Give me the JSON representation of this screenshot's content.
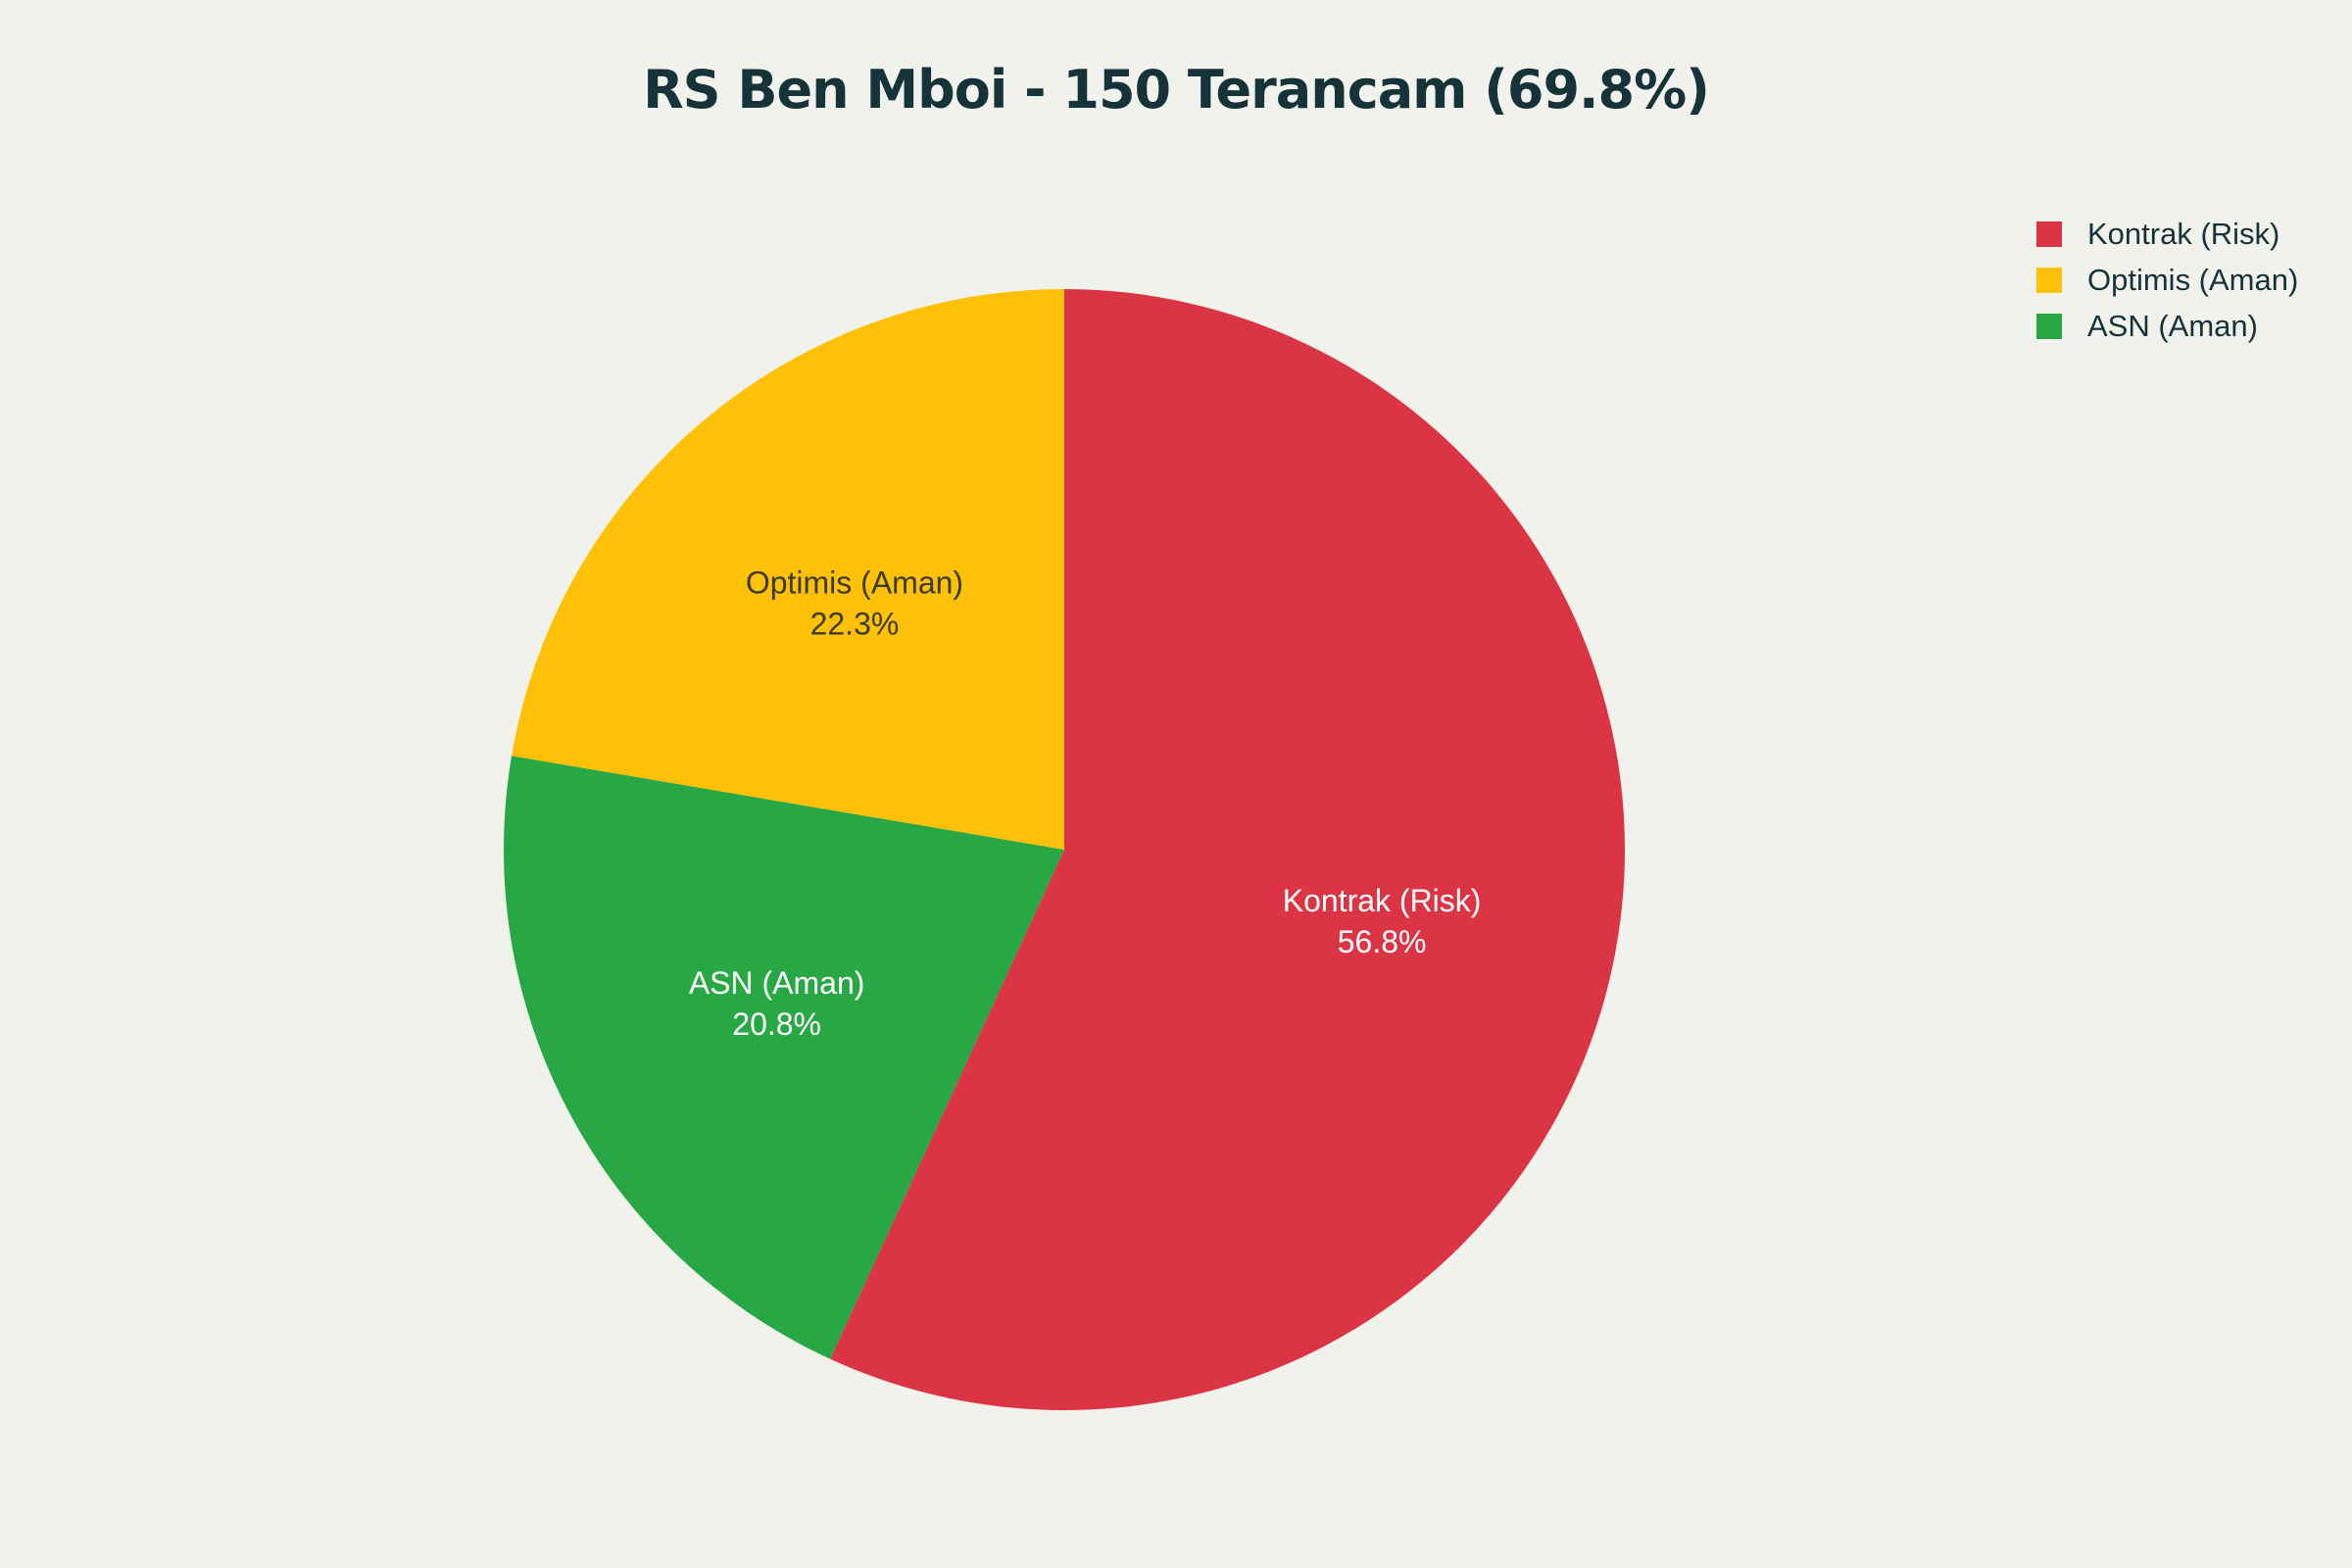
{
  "chart_data": {
    "type": "pie",
    "title": "RS Ben Mboi - 150 Terancam (69.8%)",
    "legend_position": "top-right",
    "slices": [
      {
        "label": "Kontrak (Risk)",
        "value": 56.8,
        "display": "56.8%",
        "color": "#db3445",
        "text_color": "#ffffff"
      },
      {
        "label": "ASN (Aman)",
        "value": 20.8,
        "display": "20.8%",
        "color": "#28a745",
        "text_color": "#ffffff"
      },
      {
        "label": "Optimis (Aman)",
        "value": 22.3,
        "display": "22.3%",
        "color": "#ffc107",
        "text_color": "#3b3b2e"
      }
    ],
    "legend": [
      {
        "label": "Kontrak (Risk)",
        "color": "#db3445"
      },
      {
        "label": "Optimis (Aman)",
        "color": "#ffc107"
      },
      {
        "label": "ASN (Aman)",
        "color": "#28a745"
      }
    ]
  }
}
